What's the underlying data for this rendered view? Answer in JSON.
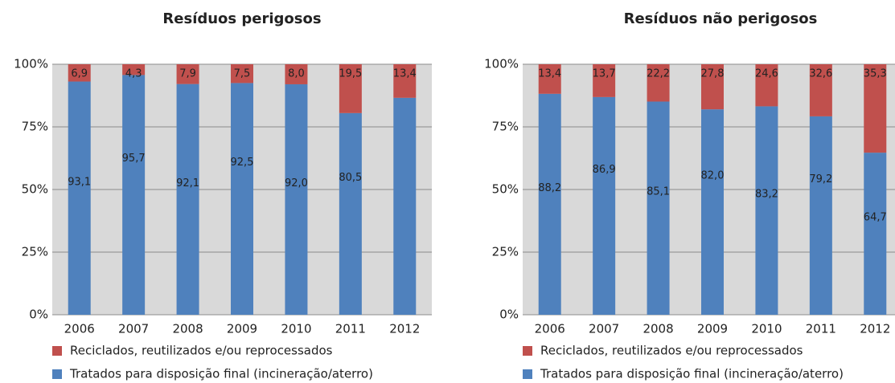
{
  "chart_data": [
    {
      "type": "bar",
      "stacked": true,
      "title": "Resíduos perigosos",
      "categories": [
        "2006",
        "2007",
        "2008",
        "2009",
        "2010",
        "2011",
        "2012"
      ],
      "series": [
        {
          "name": "Reciclados, reutilizados e/ou reprocessados",
          "color": "#c0504d",
          "values": [
            6.9,
            4.3,
            7.9,
            7.5,
            8.0,
            19.5,
            13.4
          ],
          "value_labels": [
            "6,9",
            "4,3",
            "7,9",
            "7,5",
            "8,0",
            "19,5",
            "13,4"
          ]
        },
        {
          "name": "Tratados para disposição final (incineração/aterro)",
          "color": "#4f81bd",
          "values": [
            93.1,
            95.7,
            92.1,
            92.5,
            92.0,
            80.5,
            86.6
          ],
          "value_labels": [
            "93,1",
            "95,7",
            "92,1",
            "92,5",
            "92,0",
            "80,5",
            null
          ]
        }
      ],
      "ylim": [
        0,
        100
      ],
      "yticks": [
        {
          "value": 0,
          "label": "0%"
        },
        {
          "value": 25,
          "label": "25%"
        },
        {
          "value": 50,
          "label": "50%"
        },
        {
          "value": 75,
          "label": "75%"
        },
        {
          "value": 100,
          "label": "100%"
        }
      ],
      "grid": true
    },
    {
      "type": "bar",
      "stacked": true,
      "title": "Resíduos não perigosos",
      "categories": [
        "2006",
        "2007",
        "2008",
        "2009",
        "2010",
        "2011",
        "2012"
      ],
      "series": [
        {
          "name": "Reciclados, reutilizados e/ou reprocessados",
          "color": "#c0504d",
          "values": [
            13.4,
            13.7,
            22.2,
            27.8,
            24.6,
            32.6,
            35.3
          ],
          "value_labels": [
            "13,4",
            "13,7",
            "22,2",
            "27,8",
            "24,6",
            "32,6",
            "35,3"
          ]
        },
        {
          "name": "Tratados para disposição final (incineração/aterro)",
          "color": "#4f81bd",
          "values": [
            88.2,
            86.9,
            85.1,
            82.0,
            83.2,
            79.2,
            64.7
          ],
          "value_labels": [
            "88,2",
            "86,9",
            "85,1",
            "82,0",
            "83,2",
            "79,2",
            "64,7"
          ]
        }
      ],
      "ylim": [
        0,
        100
      ],
      "yticks": [
        {
          "value": 0,
          "label": "0%"
        },
        {
          "value": 25,
          "label": "25%"
        },
        {
          "value": 50,
          "label": "50%"
        },
        {
          "value": 75,
          "label": "75%"
        },
        {
          "value": 100,
          "label": "100%"
        }
      ],
      "grid": true
    }
  ]
}
